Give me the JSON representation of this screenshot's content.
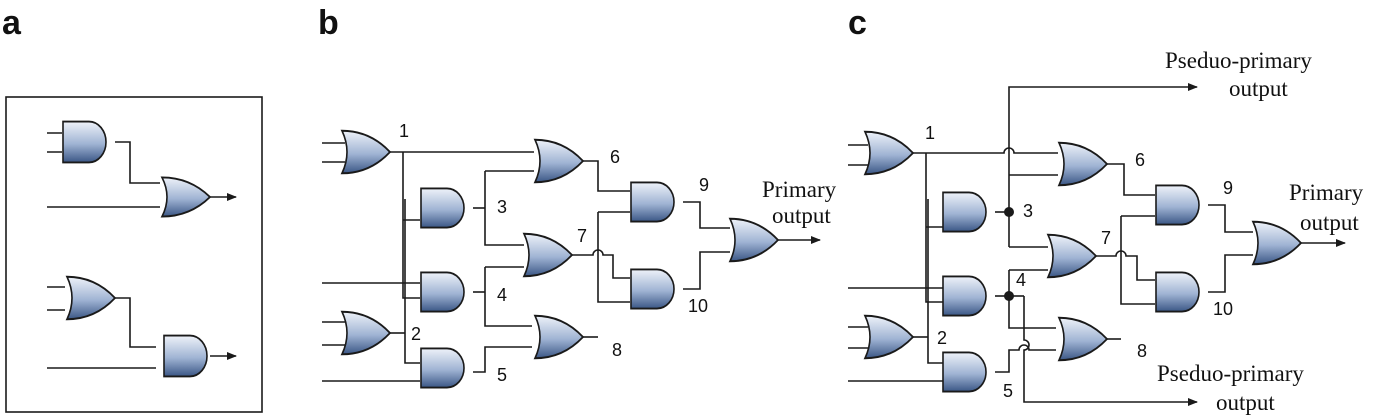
{
  "panels": {
    "a": {
      "letter": "a"
    },
    "b": {
      "letter": "b",
      "gate_labels": [
        "1",
        "2",
        "3",
        "4",
        "5",
        "6",
        "7",
        "8",
        "9",
        "10"
      ],
      "primary_output": [
        "Primary",
        "output"
      ]
    },
    "c": {
      "letter": "c",
      "gate_labels": [
        "1",
        "2",
        "3",
        "4",
        "5",
        "6",
        "7",
        "8",
        "9",
        "10"
      ],
      "primary_output": [
        "Primary",
        "output"
      ],
      "pseudo_output_top": [
        "Pseduo-primary",
        "output"
      ],
      "pseudo_output_bottom": [
        "Pseduo-primary",
        "output"
      ]
    }
  }
}
